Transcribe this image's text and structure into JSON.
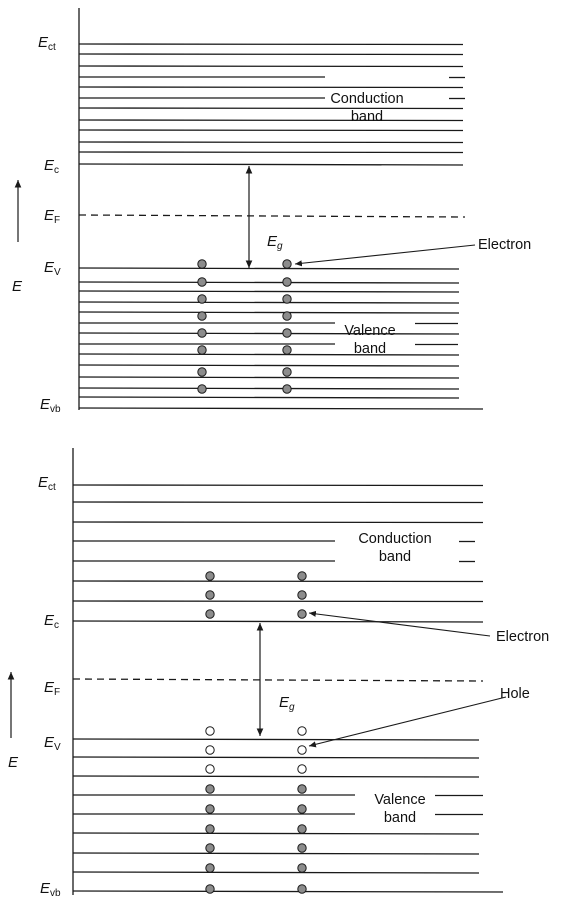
{
  "diagrams": [
    {
      "id": "top",
      "labels": {
        "ect": {
          "main": "E",
          "sub": "ct"
        },
        "ec": {
          "main": "E",
          "sub": "c"
        },
        "ef": {
          "main": "E",
          "sub": "F"
        },
        "ev": {
          "main": "E",
          "sub": "V"
        },
        "evb": {
          "main": "E",
          "sub": "vb"
        },
        "eg": {
          "main": "E",
          "sub": "g"
        }
      },
      "axis_label": "E",
      "conduction_band": [
        "Conduction",
        "band"
      ],
      "valence_band": [
        "Valence",
        "band"
      ],
      "annotations": [
        "Electron"
      ],
      "conduction_electron_rows": 0,
      "valence_electron_rows": 8,
      "valence_hole_rows": 0
    },
    {
      "id": "bottom",
      "labels": {
        "ect": {
          "main": "E",
          "sub": "ct"
        },
        "ec": {
          "main": "E",
          "sub": "c"
        },
        "ef": {
          "main": "E",
          "sub": "F"
        },
        "ev": {
          "main": "E",
          "sub": "V"
        },
        "evb": {
          "main": "E",
          "sub": "vb"
        },
        "eg": {
          "main": "E",
          "sub": "g"
        }
      },
      "axis_label": "E",
      "conduction_band": [
        "Conduction",
        "band"
      ],
      "valence_band": [
        "Valence",
        "band"
      ],
      "annotations": [
        "Electron",
        "Hole"
      ],
      "conduction_electron_rows": 3,
      "valence_electron_rows": 6,
      "valence_hole_rows": 3
    }
  ],
  "colors": {
    "line": "#1a1a1a",
    "electron_fill": "#8c8c8c",
    "hole_fill": "#ffffff"
  }
}
